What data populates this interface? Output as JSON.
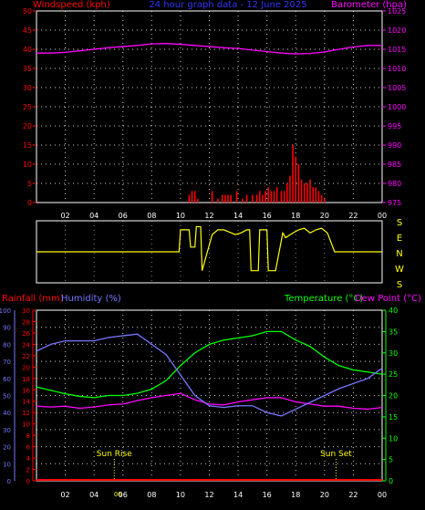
{
  "header": {
    "left_label": "Windspeed (kph)",
    "title": "24 hour graph data - 12 June 2025",
    "right_label": "Barometer (hpa)"
  },
  "colors": {
    "wind": "#ff0000",
    "pressure": "#ff00ff",
    "title": "#3333ff",
    "direction": "#ffff00",
    "rain": "#ff0000",
    "humidity": "#7777ff",
    "temperature": "#00ff00",
    "dewpoint": "#ff00ff",
    "suntext": "#ffff00",
    "grid": "#ffffff"
  },
  "x_tick_labels": [
    "02",
    "04",
    "06",
    "08",
    "10",
    "12",
    "14",
    "16",
    "18",
    "20",
    "22",
    "00"
  ],
  "direction_labels": [
    "S",
    "E",
    "N",
    "W",
    "S"
  ],
  "bottom_header": {
    "rain_label": "Rainfall (mm)",
    "humidity_label": "Humidity (%)",
    "temperature_label": "Temperature (°C)",
    "dewpoint_label": "Dew Point (°C)"
  },
  "sun": {
    "rise_label": "Sun Rise",
    "set_label": "Sun Set",
    "overlap_label": "06",
    "rise_hour": 5.4,
    "set_hour": 20.8
  },
  "chart_data": [
    {
      "type": "line",
      "title": "24 hour graph data - 12 June 2025",
      "xlabel": "",
      "x_range_hours": [
        0,
        24
      ],
      "y_left": {
        "label": "Windspeed (kph)",
        "range": [
          0,
          50
        ],
        "ticks": [
          0,
          5,
          10,
          15,
          20,
          25,
          30,
          35,
          40,
          45,
          50
        ]
      },
      "y_right": {
        "label": "Barometer (hpa)",
        "range": [
          975,
          1025
        ],
        "ticks": [
          975,
          980,
          985,
          990,
          995,
          1000,
          1005,
          1010,
          1015,
          1020,
          1025
        ]
      },
      "series": [
        {
          "name": "Barometer (hpa)",
          "axis": "right",
          "x": [
            0,
            1,
            2,
            3,
            4,
            5,
            6,
            7,
            8,
            9,
            10,
            11,
            12,
            13,
            14,
            15,
            16,
            17,
            18,
            19,
            20,
            21,
            22,
            23,
            24
          ],
          "y": [
            1014,
            1014,
            1014.2,
            1014.6,
            1015,
            1015.4,
            1015.7,
            1016,
            1016.4,
            1016.5,
            1016.3,
            1016,
            1015.7,
            1015.4,
            1015.2,
            1014.8,
            1014.4,
            1014,
            1013.8,
            1013.9,
            1014.3,
            1015,
            1015.6,
            1016,
            1016
          ]
        },
        {
          "name": "Windspeed (kph)",
          "axis": "left",
          "type": "bar",
          "x": [
            10.6,
            10.8,
            11.0,
            11.2,
            12.2,
            12.6,
            12.9,
            13.1,
            13.3,
            13.5,
            13.9,
            14.3,
            14.6,
            15.0,
            15.3,
            15.5,
            15.7,
            15.9,
            16.1,
            16.3,
            16.5,
            16.7,
            17.0,
            17.2,
            17.4,
            17.6,
            17.8,
            18.0,
            18.2,
            18.4,
            18.6,
            18.8,
            19.0,
            19.2,
            19.4,
            19.6,
            19.8,
            20.0
          ],
          "y": [
            2,
            3,
            3,
            1,
            3,
            1,
            2,
            2,
            2,
            2,
            3,
            1,
            2,
            2,
            2,
            3,
            2,
            3,
            4,
            3,
            3,
            4,
            3,
            3,
            5,
            7,
            15,
            12,
            10,
            6,
            5,
            5,
            6,
            4,
            4,
            3,
            2,
            1
          ]
        }
      ]
    },
    {
      "type": "line",
      "title": "",
      "x_range_hours": [
        0,
        24
      ],
      "y_categories": [
        "S",
        "E",
        "N",
        "W",
        "S"
      ],
      "series": [
        {
          "name": "",
          "x": [
            0,
            9.9,
            10.0,
            10.6,
            10.7,
            11.0,
            11.1,
            11.4,
            11.5,
            12.2,
            12.6,
            13.0,
            13.8,
            14.2,
            14.6,
            14.8,
            14.9,
            15.4,
            15.5,
            16.0,
            16.1,
            16.6,
            17.1,
            17.3,
            17.8,
            18.2,
            18.6,
            19.0,
            19.4,
            19.8,
            20.2,
            20.7,
            21,
            24
          ],
          "y_degrees": [
            180,
            180,
            40,
            40,
            150,
            150,
            20,
            20,
            300,
            70,
            40,
            40,
            70,
            60,
            40,
            40,
            300,
            300,
            40,
            40,
            300,
            300,
            60,
            90,
            60,
            40,
            30,
            60,
            40,
            30,
            60,
            180,
            180,
            180
          ]
        }
      ]
    },
    {
      "type": "line",
      "title": "",
      "x_range_hours": [
        0,
        24
      ],
      "y_axes": {
        "humidity": {
          "label": "Humidity (%)",
          "range": [
            0,
            100
          ],
          "ticks": [
            0,
            10,
            20,
            30,
            40,
            50,
            60,
            70,
            80,
            90,
            100
          ]
        },
        "rainfall": {
          "label": "Rainfall (mm)",
          "range": [
            0,
            30
          ],
          "ticks": [
            0,
            2,
            4,
            6,
            8,
            10,
            12,
            14,
            16,
            18,
            20,
            22,
            24,
            26,
            28,
            30
          ]
        },
        "temperature": {
          "label": "Temperature (°C)",
          "range": [
            0,
            40
          ],
          "ticks": [
            0,
            5,
            10,
            15,
            20,
            25,
            30,
            35,
            40
          ]
        }
      },
      "series": [
        {
          "name": "Humidity (%)",
          "axis": "humidity",
          "x": [
            0,
            1,
            2,
            3,
            4,
            5,
            6,
            7,
            8,
            9,
            10,
            11,
            12,
            13,
            14,
            15,
            16,
            17,
            18,
            19,
            20,
            21,
            22,
            23,
            24
          ],
          "y": [
            76,
            80,
            82,
            82,
            82,
            84,
            85,
            86,
            80,
            74,
            62,
            50,
            44,
            43,
            44,
            44,
            40,
            38,
            42,
            46,
            50,
            54,
            57,
            60,
            66
          ]
        },
        {
          "name": "Temperature (°C)",
          "axis": "temperature",
          "x": [
            0,
            1,
            2,
            3,
            4,
            5,
            6,
            7,
            8,
            9,
            10,
            11,
            12,
            13,
            14,
            15,
            16,
            17,
            18,
            19,
            20,
            21,
            22,
            23,
            24
          ],
          "y": [
            22,
            21.2,
            20.4,
            19.8,
            19.5,
            20,
            20,
            20.5,
            21.5,
            23.5,
            27,
            30,
            32,
            33,
            33.5,
            34,
            35,
            35,
            33,
            31.5,
            29,
            27,
            26,
            25.5,
            25
          ]
        },
        {
          "name": "Dew Point (°C)",
          "axis": "temperature",
          "x": [
            0,
            1,
            2,
            3,
            4,
            5,
            6,
            7,
            8,
            9,
            10,
            11,
            12,
            13,
            14,
            15,
            16,
            17,
            18,
            19,
            20,
            21,
            22,
            23,
            24
          ],
          "y": [
            17.5,
            17.3,
            17.5,
            17,
            17.3,
            17.8,
            18,
            18.8,
            19.5,
            20,
            20.5,
            19,
            18,
            17.8,
            18.5,
            19,
            19.5,
            19.5,
            18.5,
            18,
            17.5,
            17.5,
            17,
            16.8,
            17.2
          ]
        },
        {
          "name": "Rainfall (mm)",
          "axis": "rainfall",
          "x": [
            0,
            24
          ],
          "y": [
            0,
            0
          ]
        }
      ]
    }
  ]
}
